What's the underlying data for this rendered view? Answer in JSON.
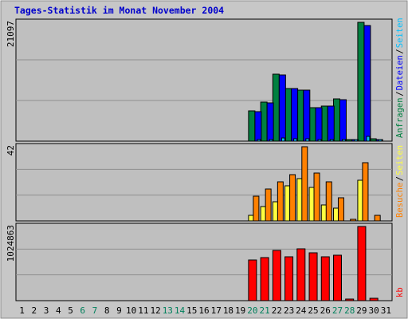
{
  "title": "Tages-Statistik im Monat November 2004",
  "colors": {
    "background": "#bfbfbf",
    "frame": "#c7c7c7",
    "title": "#0000cc",
    "hits": "#008040",
    "files": "#0000ff",
    "pages": "#00c0ff",
    "visits": "#ff8000",
    "pages_visits": "#ffff40",
    "kb": "#ff0000",
    "grid": "#8f8f8f",
    "weekend_day": "#00805c",
    "weekday": "#000000"
  },
  "chart_data": [
    {
      "type": "bar",
      "panel": "requests",
      "ymax_label": "21097",
      "ylim": [
        0,
        21097
      ],
      "legend": [
        {
          "text": "Anfragen",
          "color": "#008040"
        },
        {
          "text": "/",
          "color": "#000000"
        },
        {
          "text": "Dateien",
          "color": "#0000ff"
        },
        {
          "text": "/",
          "color": "#000000"
        },
        {
          "text": "Seiten",
          "color": "#00c0ff"
        }
      ],
      "series": [
        {
          "name": "Anfragen",
          "color": "#008040",
          "values": [
            0,
            0,
            0,
            0,
            0,
            0,
            0,
            0,
            0,
            0,
            0,
            0,
            0,
            0,
            0,
            0,
            0,
            0,
            0,
            5400,
            6900,
            11900,
            9400,
            9100,
            6000,
            6300,
            7500,
            300,
            21097,
            400
          ]
        },
        {
          "name": "Dateien",
          "color": "#0000ff",
          "values": [
            0,
            0,
            0,
            0,
            0,
            0,
            0,
            0,
            0,
            0,
            0,
            0,
            0,
            0,
            0,
            0,
            0,
            0,
            0,
            5300,
            6800,
            11800,
            9300,
            9000,
            5900,
            6200,
            7400,
            250,
            20600,
            350
          ]
        },
        {
          "name": "Seiten",
          "color": "#00c0ff",
          "values": [
            0,
            0,
            0,
            0,
            0,
            0,
            0,
            0,
            0,
            0,
            0,
            0,
            0,
            0,
            0,
            0,
            0,
            0,
            0,
            300,
            350,
            500,
            400,
            380,
            300,
            320,
            340,
            20,
            900,
            30
          ]
        }
      ]
    },
    {
      "type": "bar",
      "panel": "visits",
      "ymax_label": "42",
      "ylim": [
        0,
        42
      ],
      "legend": [
        {
          "text": "Besuche",
          "color": "#ff8000"
        },
        {
          "text": "/",
          "color": "#000000"
        },
        {
          "text": "Seiten",
          "color": "#ffff40"
        }
      ],
      "series": [
        {
          "name": "Seiten",
          "color": "#ffff40",
          "values": [
            0,
            0,
            0,
            0,
            0,
            0,
            0,
            0,
            0,
            0,
            0,
            0,
            0,
            0,
            0,
            0,
            0,
            0,
            0,
            3,
            8,
            11,
            20,
            24,
            19,
            9,
            7,
            0,
            23,
            0
          ]
        },
        {
          "name": "Besuche",
          "color": "#ff8000",
          "values": [
            0,
            0,
            0,
            0,
            0,
            0,
            0,
            0,
            0,
            0,
            0,
            0,
            0,
            0,
            0,
            0,
            0,
            0,
            0,
            14,
            18,
            22,
            26,
            42,
            27,
            22,
            13,
            1,
            33,
            3
          ]
        }
      ]
    },
    {
      "type": "bar",
      "panel": "kb",
      "ymax_label": "1024863",
      "ylim": [
        0,
        1024863
      ],
      "legend": [
        {
          "text": "kb",
          "color": "#ff0000"
        }
      ],
      "series": [
        {
          "name": "kb",
          "color": "#ff0000",
          "values": [
            0,
            0,
            0,
            0,
            0,
            0,
            0,
            0,
            0,
            0,
            0,
            0,
            0,
            0,
            0,
            0,
            0,
            0,
            0,
            565000,
            590000,
            690000,
            610000,
            720000,
            665000,
            610000,
            630000,
            25000,
            1024863,
            30000
          ]
        }
      ]
    },
    {
      "type": "axis",
      "categories": [
        "1",
        "2",
        "3",
        "4",
        "5",
        "6",
        "7",
        "8",
        "9",
        "10",
        "11",
        "12",
        "13",
        "14",
        "15",
        "16",
        "17",
        "18",
        "19",
        "20",
        "21",
        "22",
        "23",
        "24",
        "25",
        "26",
        "27",
        "28",
        "29",
        "30",
        "31"
      ],
      "weekend_days": [
        "6",
        "7",
        "13",
        "14",
        "20",
        "21",
        "27",
        "28"
      ]
    }
  ]
}
